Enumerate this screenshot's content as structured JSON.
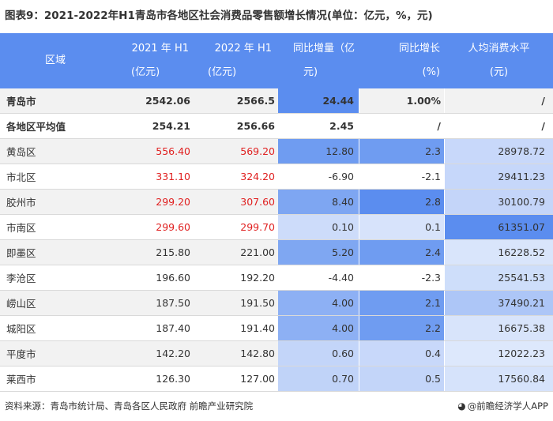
{
  "title": "图表9：2021-2022年H1青岛市各地区社会消费品零售额增长情况(单位：亿元，%，元)",
  "table": {
    "headers": [
      [
        "区域"
      ],
      [
        "2021 年 H1",
        "(亿元)"
      ],
      [
        "2022 年 H1",
        "(亿元)"
      ],
      [
        "同比增量（亿",
        "元)"
      ],
      [
        "同比增长",
        "(%)"
      ],
      [
        "人均消费水平",
        "(元)"
      ]
    ],
    "rows": [
      {
        "region": "青岛市",
        "h1_2021": "2542.06",
        "h1_2022": "2566.5",
        "increase": "24.44",
        "growth": "1.00%",
        "per_capita": "/"
      },
      {
        "region": "各地区平均值",
        "h1_2021": "254.21",
        "h1_2022": "256.66",
        "increase": "2.45",
        "growth": "/",
        "per_capita": "/"
      },
      {
        "region": "黄岛区",
        "h1_2021": "556.40",
        "h1_2022": "569.20",
        "increase": "12.80",
        "growth": "2.3",
        "per_capita": "28978.72"
      },
      {
        "region": "市北区",
        "h1_2021": "331.10",
        "h1_2022": "324.20",
        "increase": "-6.90",
        "growth": "-2.1",
        "per_capita": "29411.23"
      },
      {
        "region": "胶州市",
        "h1_2021": "299.20",
        "h1_2022": "307.60",
        "increase": "8.40",
        "growth": "2.8",
        "per_capita": "30100.79"
      },
      {
        "region": "市南区",
        "h1_2021": "299.60",
        "h1_2022": "299.70",
        "increase": "0.10",
        "growth": "0.1",
        "per_capita": "61351.07"
      },
      {
        "region": "即墨区",
        "h1_2021": "215.80",
        "h1_2022": "221.00",
        "increase": "5.20",
        "growth": "2.4",
        "per_capita": "16228.52"
      },
      {
        "region": "李沧区",
        "h1_2021": "196.60",
        "h1_2022": "192.20",
        "increase": "-4.40",
        "growth": "-2.3",
        "per_capita": "25541.53"
      },
      {
        "region": "崂山区",
        "h1_2021": "187.50",
        "h1_2022": "191.50",
        "increase": "4.00",
        "growth": "2.1",
        "per_capita": "37490.21"
      },
      {
        "region": "城阳区",
        "h1_2021": "187.40",
        "h1_2022": "191.40",
        "increase": "4.00",
        "growth": "2.2",
        "per_capita": "16675.38"
      },
      {
        "region": "平度市",
        "h1_2021": "142.20",
        "h1_2022": "142.80",
        "increase": "0.60",
        "growth": "0.4",
        "per_capita": "12022.23"
      },
      {
        "region": "莱西市",
        "h1_2021": "126.30",
        "h1_2022": "127.00",
        "increase": "0.70",
        "growth": "0.5",
        "per_capita": "17560.84"
      }
    ]
  },
  "colors": {
    "header_bg": "#5b8def",
    "heat_increase": [
      "#5b8def",
      "#ffffff",
      "#6f9cf1",
      "#ffffff",
      "#7ea6f2",
      "#cddcfa",
      "#7fa7f2",
      "#ffffff",
      "#8db0f4",
      "#8db0f4",
      "#c3d5f9",
      "#c0d3f8"
    ],
    "heat_growth": [
      "#ffffff",
      "#ffffff",
      "#6f9cf1",
      "#ffffff",
      "#5b8def",
      "#d7e3fb",
      "#6f9cf1",
      "#ffffff",
      "#6f9cf1",
      "#6f9cf1",
      "#c8d8fa",
      "#c3d5f9"
    ],
    "heat_per_capita": [
      "#ffffff",
      "#ffffff",
      "#c8d8fa",
      "#c6d7fa",
      "#c4d5f9",
      "#5b8def",
      "#d9e5fb",
      "#cedefa",
      "#adc6f7",
      "#d8e4fb",
      "#dde8fc",
      "#d6e3fb"
    ],
    "red_rows": [
      2,
      3,
      4,
      5
    ]
  },
  "footer": {
    "source": "资料来源：青岛市统计局、青岛各区人民政府 前瞻产业研究院",
    "brand": "@前瞻经济学人APP",
    "brand_icon": "qianzhan-logo-icon"
  }
}
